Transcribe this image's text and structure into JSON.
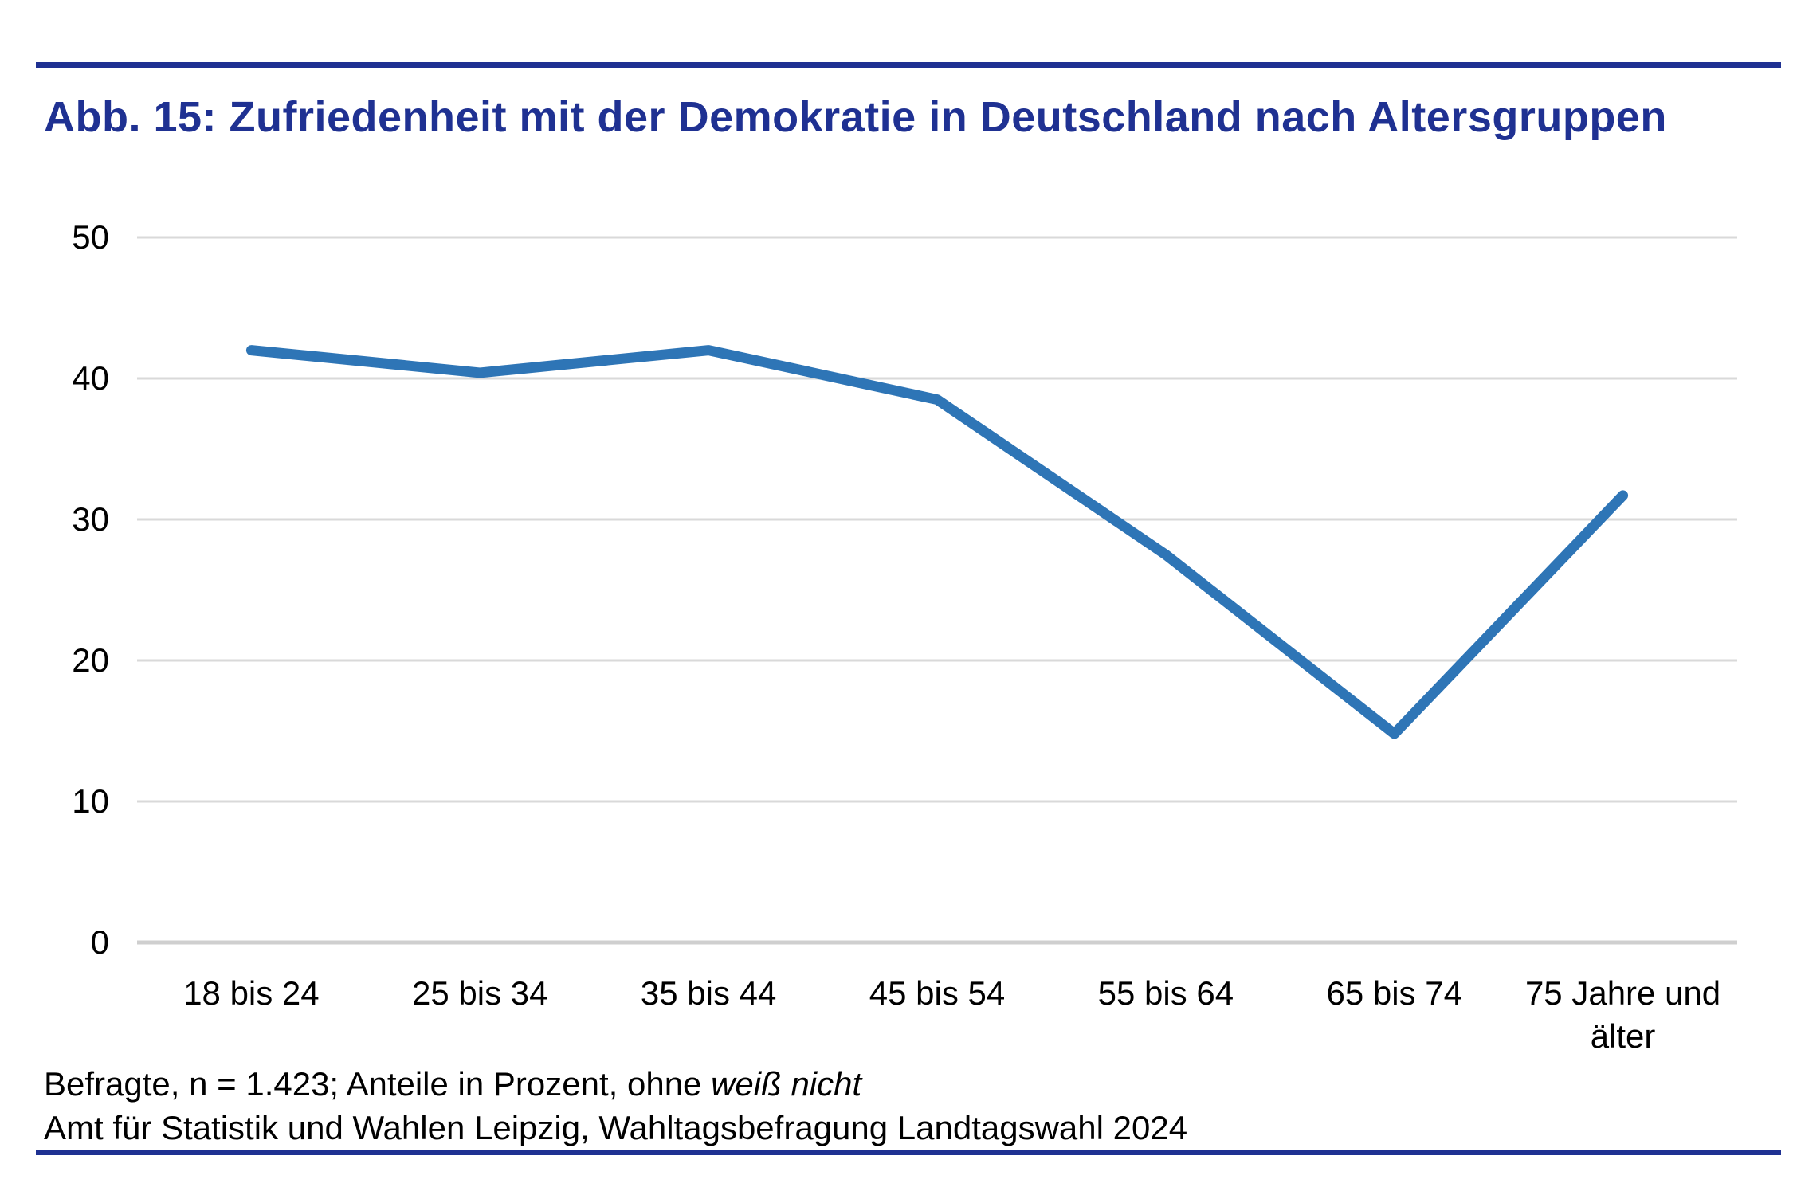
{
  "header": {
    "title": "Abb. 15: Zufriedenheit mit der Demokratie in Deutschland nach Altersgruppen"
  },
  "footer": {
    "line1_regular": "Befragte, n = 1.423; Anteile in Prozent, ohne ",
    "line1_italic": "weiß nicht",
    "line2": "Amt für Statistik und Wahlen Leipzig, Wahltagsbefragung Landtagswahl 2024"
  },
  "colors": {
    "accent_navy": "#1F3192",
    "line_blue": "#2E75B6",
    "gridline_gray": "#D9D9D9",
    "axis_gray": "#CFCFCF",
    "text_black": "#000000"
  },
  "chart_data": {
    "type": "line",
    "title": "Abb. 15: Zufriedenheit mit der Demokratie in Deutschland nach Altersgruppen",
    "categories": [
      "18 bis 24",
      "25 bis 34",
      "35 bis 44",
      "45 bis 54",
      "55 bis 64",
      "65 bis 74",
      "75 Jahre und älter"
    ],
    "values": [
      42,
      40.4,
      42,
      38.5,
      27.5,
      14.8,
      31.7
    ],
    "series_name": "Zufriedenheit mit der Demokratie (Anteil in Prozent)",
    "xlabel": "",
    "ylabel": "",
    "ylim": [
      0,
      50
    ],
    "yticks": [
      0,
      10,
      20,
      30,
      40,
      50
    ],
    "grid": "horizontal",
    "legend": "none",
    "line_color": "#2E75B6"
  }
}
